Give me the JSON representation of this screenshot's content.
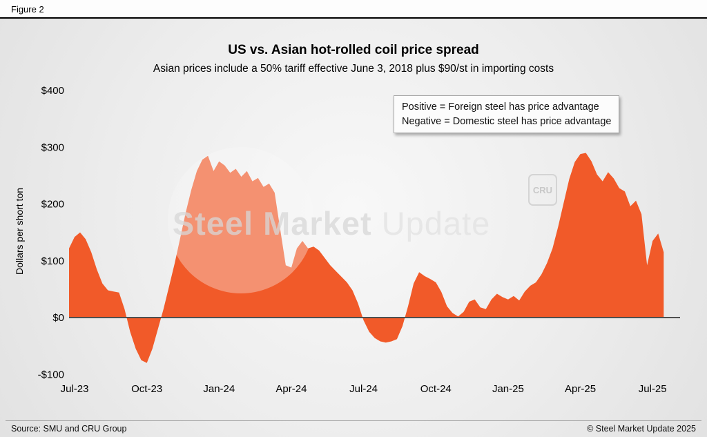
{
  "figure_label": "Figure 2",
  "chart_data": {
    "type": "area",
    "title": "US vs. Asian hot-rolled coil price spread",
    "subtitle": "Asian prices include a 50% tariff effective June 3, 2018 plus $90/st in importing costs",
    "ylabel": "Dollars per short ton",
    "xlabel": "",
    "ylim": [
      -100,
      400
    ],
    "grid": false,
    "legend_position": "top-right",
    "fill_color": "#f15a29",
    "zero_line_color": "#4f4f4f",
    "annotation": {
      "line1": "Positive = Foreign steel has price advantage",
      "line2": "Negative = Domestic steel has price advantage"
    },
    "y_ticks": [
      {
        "label": "$400",
        "value": 400
      },
      {
        "label": "$300",
        "value": 300
      },
      {
        "label": "$200",
        "value": 200
      },
      {
        "label": "$100",
        "value": 100
      },
      {
        "label": "$0",
        "value": 0
      },
      {
        "label": "-$100",
        "value": -100
      }
    ],
    "x_ticks": [
      {
        "label": "Jul-23",
        "week": 0
      },
      {
        "label": "Oct-23",
        "week": 13
      },
      {
        "label": "Jan-24",
        "week": 26
      },
      {
        "label": "Apr-24",
        "week": 39
      },
      {
        "label": "Jul-24",
        "week": 52
      },
      {
        "label": "Oct-24",
        "week": 65
      },
      {
        "label": "Jan-25",
        "week": 78
      },
      {
        "label": "Apr-25",
        "week": 91
      },
      {
        "label": "Jul-25",
        "week": 104
      }
    ],
    "series_name": "US minus Asian HRC price spread ($ per short ton, weekly)",
    "start_week_offset": -1,
    "values": [
      122,
      142,
      150,
      138,
      115,
      85,
      60,
      48,
      46,
      44,
      15,
      -25,
      -55,
      -75,
      -80,
      -55,
      -20,
      15,
      55,
      95,
      140,
      185,
      225,
      258,
      278,
      285,
      258,
      275,
      268,
      255,
      262,
      248,
      258,
      240,
      246,
      230,
      236,
      220,
      155,
      92,
      88,
      122,
      135,
      122,
      125,
      118,
      105,
      92,
      82,
      72,
      62,
      48,
      25,
      -5,
      -25,
      -36,
      -42,
      -44,
      -42,
      -38,
      -15,
      20,
      60,
      80,
      73,
      68,
      62,
      45,
      20,
      8,
      2,
      10,
      28,
      32,
      18,
      15,
      32,
      42,
      36,
      32,
      38,
      30,
      46,
      56,
      62,
      76,
      96,
      122,
      160,
      202,
      244,
      274,
      288,
      290,
      275,
      252,
      240,
      256,
      245,
      228,
      222,
      196,
      206,
      182,
      92,
      135,
      148,
      115
    ]
  },
  "watermark": {
    "part1": "Steel",
    "part2": "Market",
    "part3": "Update",
    "badge": "CRU"
  },
  "footer": {
    "source": "Source: SMU and CRU Group",
    "copyright": "© Steel Market Update 2025"
  }
}
